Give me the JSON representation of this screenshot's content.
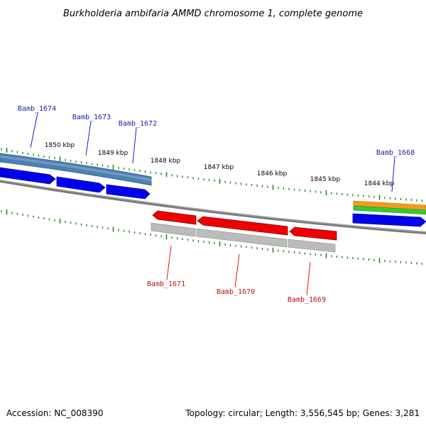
{
  "title": "Burkholderia ambifaria AMMD chromosome 1, complete genome",
  "footer": {
    "accession": "Accession: NC_008390",
    "summary": "Topology: circular; Length: 3,556,545 bp; Genes: 3,281"
  },
  "colors": {
    "forward_gene": "#0000ee",
    "forward_label": "#1a1aaa",
    "reverse_gene": "#ee0000",
    "reverse_label": "#bb1111",
    "tick": "#228822",
    "backbone": "#777777",
    "gray_feature": "#bbbbbb",
    "steel_feature": "#4f81b0",
    "orange_feature": "#f59a1a",
    "green_feature": "#33cc33"
  },
  "scale": {
    "unit": "kbp",
    "labels": [
      "1850 kbp",
      "1849 kbp",
      "1848 kbp",
      "1847 kbp",
      "1846 kbp",
      "1845 kbp",
      "1844 kbp"
    ]
  },
  "genes": {
    "forward": [
      {
        "name": "Bamb_1674"
      },
      {
        "name": "Bamb_1673"
      },
      {
        "name": "Bamb_1672"
      },
      {
        "name": "Bamb_1668"
      }
    ],
    "reverse": [
      {
        "name": "Bamb_1671"
      },
      {
        "name": "Bamb_1670"
      },
      {
        "name": "Bamb_1669"
      }
    ]
  }
}
